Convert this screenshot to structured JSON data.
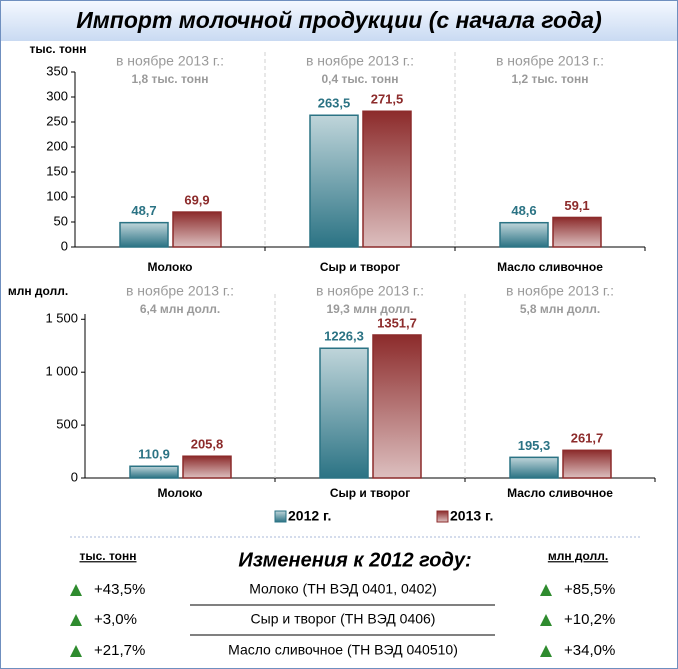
{
  "title": "Импорт молочной продукции (с начала года)",
  "chart_data": [
    {
      "type": "bar",
      "y_label": "тыс. тонн",
      "categories": [
        "Молоко",
        "Сыр и творог",
        "Масло сливочное"
      ],
      "annotations": [
        {
          "label": "в ноябре 2013 г.:",
          "value": "1,8 тыс. тонн"
        },
        {
          "label": "в ноябре 2013 г.:",
          "value": "0,4 тыс. тонн"
        },
        {
          "label": "в ноябре 2013 г.:",
          "value": "1,2 тыс. тонн"
        }
      ],
      "series": [
        {
          "name": "2012 г.",
          "color": "#2b7384",
          "values": [
            48.7,
            263.5,
            48.6
          ],
          "value_labels": [
            "48,7",
            "263,5",
            "48,6"
          ]
        },
        {
          "name": "2013 г.",
          "color": "#8c2b2b",
          "values": [
            69.9,
            271.5,
            59.1
          ],
          "value_labels": [
            "69,9",
            "271,5",
            "59,1"
          ]
        }
      ],
      "ylim": [
        0,
        350
      ],
      "yticks": [
        0,
        50,
        100,
        150,
        200,
        250,
        300,
        350
      ]
    },
    {
      "type": "bar",
      "y_label": "млн долл.",
      "categories": [
        "Молоко",
        "Сыр и творог",
        "Масло сливочное"
      ],
      "annotations": [
        {
          "label": "в ноябре 2013 г.:",
          "value": "6,4 млн долл."
        },
        {
          "label": "в ноябре 2013 г.:",
          "value": "19,3 млн долл."
        },
        {
          "label": "в ноябре 2013 г.:",
          "value": "5,8 млн долл."
        }
      ],
      "series": [
        {
          "color": "#2b7384",
          "values": [
            110.9,
            1226.3,
            195.3
          ],
          "value_labels": [
            "110,9",
            "1226,3",
            "195,3"
          ]
        },
        {
          "color": "#8c2b2b",
          "values": [
            205.8,
            1351.7,
            261.7
          ],
          "value_labels": [
            "205,8",
            "1351,7",
            "261,7"
          ]
        }
      ],
      "ylim": [
        0,
        1550
      ],
      "yticks": [
        0,
        500,
        {
          "value": 1000,
          "label": "1 000"
        },
        {
          "value": 1500,
          "label": "1 500"
        }
      ]
    }
  ],
  "changes": {
    "left_header": "тыс. тонн",
    "title": "Изменения к 2012 году:",
    "right_header": "млн долл.",
    "rows": [
      [
        "+43,5%",
        "Молоко (ТН ВЭД 0401, 0402)",
        "+85,5%"
      ],
      [
        "+3,0%",
        "Сыр и творог (ТН ВЭД 0406)",
        "+10,2%"
      ],
      [
        "+21,7%",
        "Масло сливочное (ТН ВЭД 040510)",
        "+34,0%"
      ]
    ]
  }
}
